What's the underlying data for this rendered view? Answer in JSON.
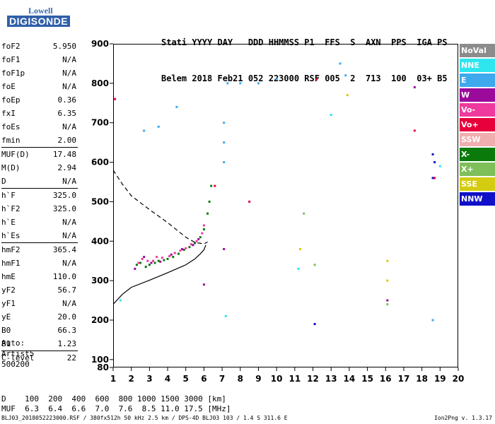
{
  "logo": {
    "top": "Lowell",
    "bottom": "DIGISONDE"
  },
  "header": {
    "line1": "Stati YYYY DAY   DDD HHMMSS P1  FFS  S  AXN  PPS  IGA PS",
    "line2": "Belem 2018 Feb21 052 223000 RSF 005  2  713  100  03+ B5"
  },
  "params": [
    {
      "name": "foF2",
      "value": "5.950"
    },
    {
      "name": "foF1",
      "value": "N/A"
    },
    {
      "name": "foF1p",
      "value": "N/A"
    },
    {
      "name": "foE",
      "value": "N/A"
    },
    {
      "name": "foEp",
      "value": "0.36"
    },
    {
      "name": "fxI",
      "value": "6.35"
    },
    {
      "name": "foEs",
      "value": "N/A"
    },
    {
      "name": "fmin",
      "value": "2.00"
    },
    {
      "name": "MUF(D)",
      "value": "17.48"
    },
    {
      "name": "M(D)",
      "value": "2.94"
    },
    {
      "name": "D",
      "value": "N/A"
    },
    {
      "name": "h`F",
      "value": "325.0"
    },
    {
      "name": "h`F2",
      "value": "325.0"
    },
    {
      "name": "h`E",
      "value": "N/A"
    },
    {
      "name": "h`Es",
      "value": "N/A"
    },
    {
      "name": "hmF2",
      "value": "365.4"
    },
    {
      "name": "hmF1",
      "value": "N/A"
    },
    {
      "name": "hmE",
      "value": "110.0"
    },
    {
      "name": "yF2",
      "value": "56.7"
    },
    {
      "name": "yF1",
      "value": "N/A"
    },
    {
      "name": "yE",
      "value": "20.0"
    },
    {
      "name": "B0",
      "value": "66.3"
    },
    {
      "name": "B1",
      "value": "1.23"
    },
    {
      "name": "C-level",
      "value": "22"
    }
  ],
  "auto": {
    "l1": "Auto:",
    "l2": "Artist5",
    "l3": "500200"
  },
  "legend": [
    {
      "label": "NoVal",
      "color": "#8c8c8c"
    },
    {
      "label": "NNE",
      "color": "#2ee6ee"
    },
    {
      "label": "E",
      "color": "#3fa9ee"
    },
    {
      "label": "W",
      "color": "#9b0a9b"
    },
    {
      "label": "Vo-",
      "color": "#ee3a9e"
    },
    {
      "label": "Vo+",
      "color": "#e8003c"
    },
    {
      "label": "SSW",
      "color": "#f0aeae"
    },
    {
      "label": "X-",
      "color": "#0a7a0a"
    },
    {
      "label": "X+",
      "color": "#7fbf5a"
    },
    {
      "label": "SSE",
      "color": "#d4cc10"
    },
    {
      "label": "NNW",
      "color": "#1010c8"
    }
  ],
  "muf_table": {
    "d_line": "D    100  200  400  600  800 1000 1500 3000 [km]",
    "muf_line": "MUF  6.3  6.4  6.6  7.0  7.6  8.5 11.0 17.5 [MHz]"
  },
  "footer": "BLJ03_2018052223000.RSF / 380fx512h 50 kHz 2.5 km / DPS-4D BLJ03 103 / 1.4 S 311.6 E",
  "version": "Ion2Png v. 1.3.17",
  "chart_data": {
    "type": "scatter",
    "xlim": [
      1,
      20
    ],
    "ylim": [
      80,
      900
    ],
    "xticks": [
      "1",
      "2",
      "3",
      "4",
      "5",
      "6",
      "7",
      "8",
      "9",
      "10",
      "11",
      "12",
      "13",
      "14",
      "15",
      "16",
      "17",
      "18",
      "19",
      "20"
    ],
    "yticks": [
      "80",
      "100",
      "200",
      "300",
      "400",
      "500",
      "600",
      "700",
      "800",
      "900"
    ],
    "grid": false,
    "legend_position": "right",
    "series": [
      {
        "name": "X-",
        "points": [
          [
            2.3,
            340
          ],
          [
            2.5,
            345
          ],
          [
            2.8,
            335
          ],
          [
            3.0,
            340
          ],
          [
            3.3,
            345
          ],
          [
            3.5,
            350
          ],
          [
            3.8,
            352
          ],
          [
            4.0,
            355
          ],
          [
            4.3,
            360
          ],
          [
            4.6,
            368
          ],
          [
            4.9,
            378
          ],
          [
            5.2,
            385
          ],
          [
            5.5,
            395
          ],
          [
            5.8,
            410
          ],
          [
            6.0,
            430
          ],
          [
            6.2,
            470
          ],
          [
            6.3,
            500
          ],
          [
            6.4,
            540
          ]
        ]
      },
      {
        "name": "Vo-",
        "points": [
          [
            2.4,
            345
          ],
          [
            2.6,
            355
          ],
          [
            2.9,
            350
          ],
          [
            3.2,
            350
          ],
          [
            3.4,
            360
          ],
          [
            3.7,
            358
          ],
          [
            4.1,
            362
          ],
          [
            4.4,
            370
          ],
          [
            4.7,
            376
          ],
          [
            5.0,
            382
          ],
          [
            5.3,
            392
          ],
          [
            5.6,
            400
          ],
          [
            5.9,
            420
          ],
          [
            6.0,
            440
          ]
        ]
      },
      {
        "name": "W",
        "points": [
          [
            2.2,
            330
          ],
          [
            2.7,
            360
          ],
          [
            3.1,
            345
          ],
          [
            3.6,
            348
          ],
          [
            4.2,
            366
          ],
          [
            4.8,
            380
          ],
          [
            5.4,
            390
          ],
          [
            5.7,
            405
          ],
          [
            6.0,
            290
          ],
          [
            7.1,
            380
          ],
          [
            16.1,
            250
          ],
          [
            17.6,
            790
          ]
        ]
      },
      {
        "name": "E",
        "points": [
          [
            2.7,
            680
          ],
          [
            3.5,
            690
          ],
          [
            4.5,
            740
          ],
          [
            7.1,
            700
          ],
          [
            7.1,
            650
          ],
          [
            7.1,
            600
          ],
          [
            7.3,
            800
          ],
          [
            8.0,
            800
          ],
          [
            9.0,
            800
          ],
          [
            10.0,
            810
          ],
          [
            13.5,
            850
          ],
          [
            13.8,
            820
          ],
          [
            18.6,
            200
          ]
        ]
      },
      {
        "name": "NNE",
        "points": [
          [
            1.4,
            250
          ],
          [
            7.2,
            210
          ],
          [
            11.2,
            330
          ],
          [
            13.0,
            720
          ],
          [
            19.0,
            590
          ]
        ]
      },
      {
        "name": "Vo+",
        "points": [
          [
            1.1,
            760
          ],
          [
            6.6,
            540
          ],
          [
            8.5,
            500
          ],
          [
            12.2,
            810
          ],
          [
            17.6,
            680
          ],
          [
            18.7,
            560
          ]
        ]
      },
      {
        "name": "SSE",
        "points": [
          [
            11.3,
            380
          ],
          [
            13.9,
            770
          ],
          [
            16.1,
            350
          ],
          [
            16.1,
            300
          ]
        ]
      },
      {
        "name": "X+",
        "points": [
          [
            11.5,
            470
          ],
          [
            12.1,
            340
          ],
          [
            16.1,
            240
          ]
        ]
      },
      {
        "name": "NNW",
        "points": [
          [
            12.1,
            190
          ],
          [
            18.6,
            620
          ],
          [
            18.7,
            600
          ],
          [
            18.6,
            560
          ]
        ]
      }
    ],
    "curves": [
      {
        "name": "dashed",
        "points": [
          [
            1,
            580
          ],
          [
            1.5,
            545
          ],
          [
            2,
            515
          ],
          [
            3,
            480
          ],
          [
            4,
            447
          ],
          [
            5,
            410
          ],
          [
            5.5,
            397
          ],
          [
            6,
            393
          ],
          [
            6.2,
            398
          ]
        ]
      },
      {
        "name": "profile",
        "points": [
          [
            1,
            240
          ],
          [
            1.5,
            265
          ],
          [
            2,
            283
          ],
          [
            3,
            301
          ],
          [
            4,
            320
          ],
          [
            5,
            340
          ],
          [
            5.5,
            355
          ],
          [
            5.8,
            368
          ],
          [
            6,
            378
          ],
          [
            6.1,
            390
          ]
        ]
      }
    ]
  }
}
